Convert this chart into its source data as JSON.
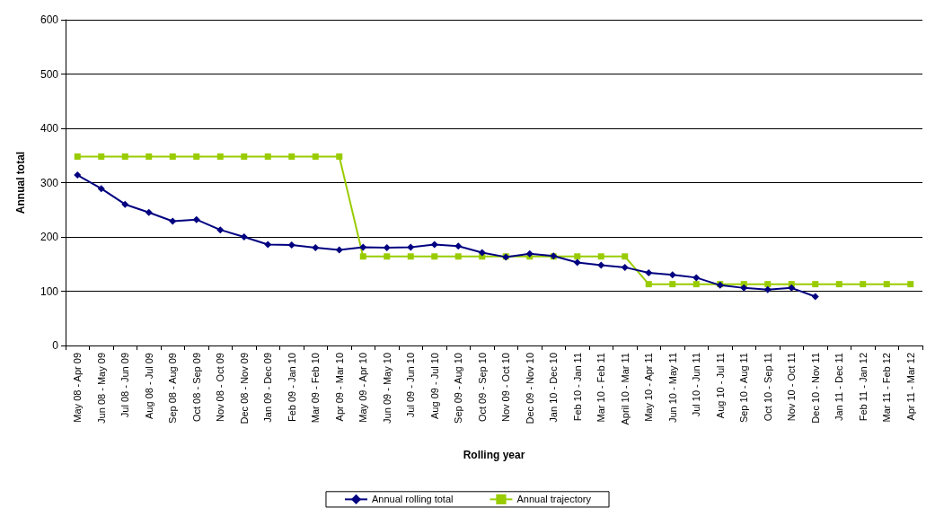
{
  "chart_data": {
    "type": "line",
    "xlabel": "Rolling year",
    "ylabel": "Annual total",
    "categories": [
      "May 08 - Apr 09",
      "Jun 08 - May 09",
      "Jul 08 - Jun 09",
      "Aug 08 - Jul 09",
      "Sep 08 - Aug 09",
      "Oct 08 - Sep 09",
      "Nov 08 - Oct 09",
      "Dec 08 - Nov 09",
      "Jan 09 - Dec 09",
      "Feb 09 - Jan 10",
      "Mar 09 - Feb 10",
      "Apr 09 - Mar 10",
      "May 09 - Apr 10",
      "Jun 09 - May 10",
      "Jul 09 - Jun 10",
      "Aug 09 - Jul 10",
      "Sep 09 - Aug 10",
      "Oct 09 - Sep 10",
      "Nov 09 - Oct 10",
      "Dec 09 - Nov 10",
      "Jan 10 - Dec 10",
      "Feb 10 - Jan 11",
      "Mar 10 - Feb 11",
      "April 10 - Mar 11",
      "May 10 - Apr 11",
      "Jun 10 - May 11",
      "Jul 10 - Jun 11",
      "Aug 10 - Jul 11",
      "Sep 10 - Aug 11",
      "Oct 10 - Sep 11",
      "Nov 10 - Oct 11",
      "Dec 10 - Nov 11",
      "Jan 11 - Dec 11",
      "Feb 11 - Jan 12",
      "Mar 11 - Feb 12",
      "Apr 11 - Mar 12"
    ],
    "series": [
      {
        "name": "Annual rolling total",
        "color": "#000080",
        "marker": "diamond",
        "values": [
          314,
          289,
          260,
          245,
          229,
          232,
          213,
          200,
          186,
          185,
          180,
          176,
          181,
          180,
          181,
          186,
          183,
          171,
          163,
          169,
          165,
          153,
          148,
          144,
          134,
          130,
          125,
          111,
          106,
          103,
          106,
          90,
          null,
          null,
          null,
          null
        ]
      },
      {
        "name": "Annual trajectory",
        "color": "#99cc00",
        "marker": "square",
        "values": [
          348,
          348,
          348,
          348,
          348,
          348,
          348,
          348,
          348,
          348,
          348,
          348,
          164,
          164,
          164,
          164,
          164,
          164,
          164,
          164,
          164,
          164,
          164,
          164,
          113,
          113,
          113,
          113,
          113,
          113,
          113,
          113,
          113,
          113,
          113,
          113
        ]
      }
    ],
    "ylim": [
      0,
      600
    ],
    "yticks": [
      0,
      100,
      200,
      300,
      400,
      500,
      600
    ],
    "grid": "y",
    "legend": "bottom",
    "line_style": "solid"
  }
}
